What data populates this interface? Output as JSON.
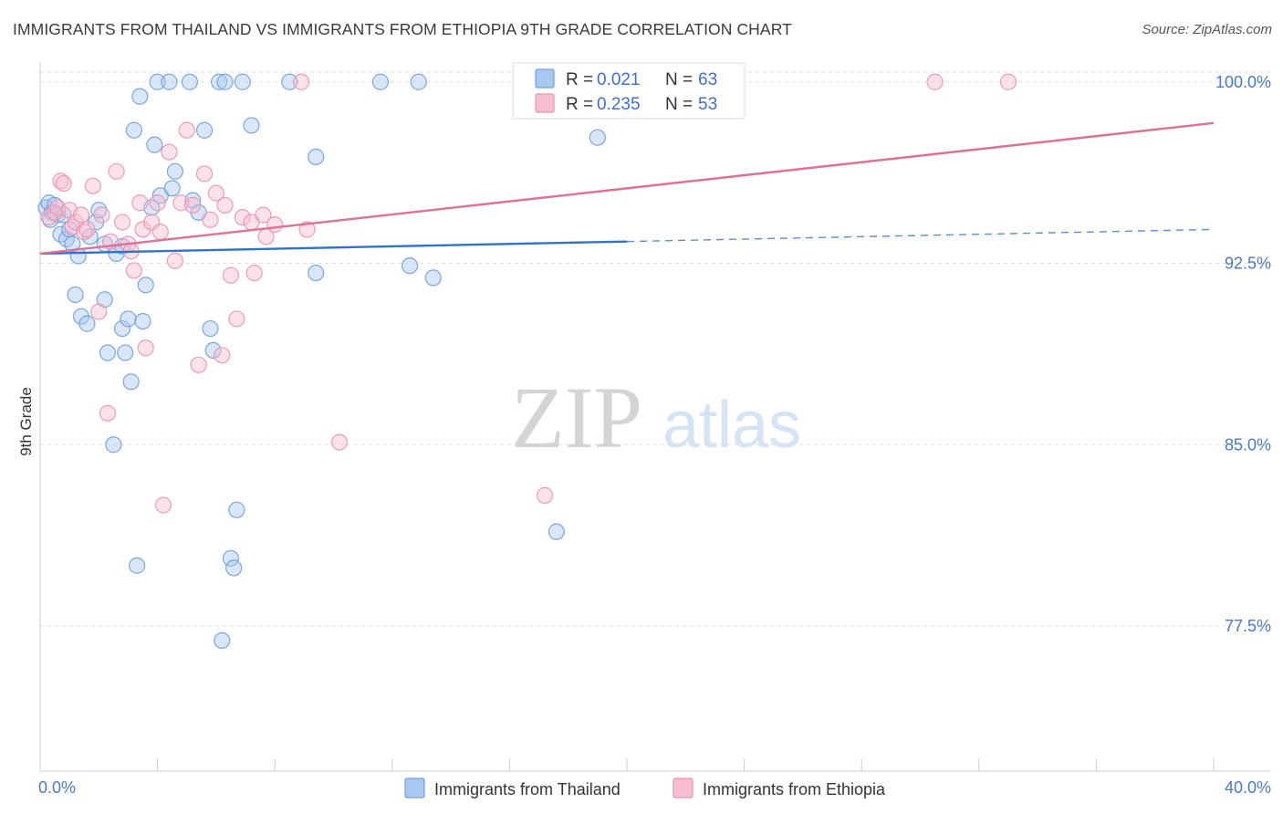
{
  "header": {
    "title": "IMMIGRANTS FROM THAILAND VS IMMIGRANTS FROM ETHIOPIA 9TH GRADE CORRELATION CHART",
    "source": "Source: ZipAtlas.com"
  },
  "watermark": {
    "zip": "ZIP",
    "atlas": "atlas"
  },
  "colors": {
    "thailand_fill": "#a9c8f0",
    "thailand_stroke": "#6f9fdc",
    "thailand_line": "#2f72c9",
    "ethiopia_fill": "#f7bdd0",
    "ethiopia_stroke": "#ea92b0",
    "ethiopia_line": "#e07098",
    "tick_label": "#4a78c8",
    "grid": "#e0e0e0"
  },
  "chart_data": {
    "type": "scatter",
    "title": "IMMIGRANTS FROM THAILAND VS IMMIGRANTS FROM ETHIOPIA 9TH GRADE CORRELATION CHART",
    "xlabel": "",
    "ylabel": "9th Grade",
    "xlim": [
      0,
      40
    ],
    "ylim": [
      71.5,
      101.5
    ],
    "x_tick_labels": [
      {
        "value": 0,
        "label": "0.0%"
      },
      {
        "value": 40,
        "label": "40.0%"
      }
    ],
    "y_tick_labels": [
      {
        "value": 77.5,
        "label": "77.5%"
      },
      {
        "value": 85.0,
        "label": "85.0%"
      },
      {
        "value": 92.5,
        "label": "92.5%"
      },
      {
        "value": 100.0,
        "label": "100.0%"
      }
    ],
    "grid": true,
    "legend_placement": "top-center",
    "legend": [
      {
        "series": "Immigrants from Thailand",
        "r_label": "R =",
        "r_value": "0.021",
        "n_label": "N =",
        "n_value": "63"
      },
      {
        "series": "Immigrants from Ethiopia",
        "r_label": "R =",
        "r_value": "0.235",
        "n_label": "N =",
        "n_value": "53"
      }
    ],
    "series": [
      {
        "name": "Immigrants from Thailand",
        "trend": {
          "x": [
            0,
            20
          ],
          "y": [
            92.9,
            93.4
          ],
          "dashed_to": [
            40,
            93.9
          ]
        },
        "points": [
          [
            0.2,
            94.8
          ],
          [
            0.3,
            95.0
          ],
          [
            0.4,
            94.6
          ],
          [
            0.5,
            94.9
          ],
          [
            0.6,
            94.5
          ],
          [
            0.7,
            93.7
          ],
          [
            0.8,
            94.5
          ],
          [
            0.9,
            93.5
          ],
          [
            1.0,
            93.9
          ],
          [
            1.1,
            93.3
          ],
          [
            1.3,
            92.8
          ],
          [
            1.2,
            91.2
          ],
          [
            1.4,
            90.3
          ],
          [
            1.6,
            90.0
          ],
          [
            1.7,
            93.6
          ],
          [
            1.9,
            94.2
          ],
          [
            2.0,
            94.7
          ],
          [
            2.2,
            93.3
          ],
          [
            2.2,
            91.0
          ],
          [
            2.3,
            88.8
          ],
          [
            2.5,
            85.0
          ],
          [
            2.6,
            92.9
          ],
          [
            2.8,
            93.2
          ],
          [
            2.8,
            89.8
          ],
          [
            2.9,
            88.8
          ],
          [
            3.0,
            90.2
          ],
          [
            3.1,
            87.6
          ],
          [
            3.2,
            98.0
          ],
          [
            3.3,
            80.0
          ],
          [
            3.4,
            99.4
          ],
          [
            3.5,
            90.1
          ],
          [
            3.6,
            91.6
          ],
          [
            3.8,
            94.8
          ],
          [
            3.9,
            97.4
          ],
          [
            4.0,
            100.0
          ],
          [
            4.1,
            95.3
          ],
          [
            4.4,
            100.0
          ],
          [
            4.5,
            95.6
          ],
          [
            4.6,
            96.3
          ],
          [
            5.1,
            100.0
          ],
          [
            5.2,
            95.1
          ],
          [
            5.4,
            94.6
          ],
          [
            5.6,
            98.0
          ],
          [
            5.8,
            89.8
          ],
          [
            5.9,
            88.9
          ],
          [
            6.1,
            100.0
          ],
          [
            6.2,
            76.9
          ],
          [
            6.3,
            100.0
          ],
          [
            6.5,
            80.3
          ],
          [
            6.6,
            79.9
          ],
          [
            6.7,
            82.3
          ],
          [
            6.9,
            100.0
          ],
          [
            7.2,
            98.2
          ],
          [
            8.5,
            100.0
          ],
          [
            9.4,
            96.9
          ],
          [
            9.4,
            92.1
          ],
          [
            11.6,
            100.0
          ],
          [
            12.6,
            92.4
          ],
          [
            12.9,
            100.0
          ],
          [
            13.4,
            91.9
          ],
          [
            17.6,
            81.4
          ],
          [
            19.0,
            97.7
          ],
          [
            0.35,
            94.3
          ]
        ]
      },
      {
        "name": "Immigrants from Ethiopia",
        "trend": {
          "x": [
            0,
            40
          ],
          "y": [
            92.9,
            98.3
          ]
        },
        "points": [
          [
            0.3,
            94.4
          ],
          [
            0.5,
            94.6
          ],
          [
            0.6,
            94.8
          ],
          [
            0.7,
            95.9
          ],
          [
            0.8,
            95.8
          ],
          [
            1.0,
            94.7
          ],
          [
            1.1,
            94.0
          ],
          [
            1.2,
            94.2
          ],
          [
            1.4,
            94.5
          ],
          [
            1.5,
            93.8
          ],
          [
            1.6,
            93.9
          ],
          [
            1.8,
            95.7
          ],
          [
            2.0,
            90.5
          ],
          [
            2.1,
            94.5
          ],
          [
            2.3,
            86.3
          ],
          [
            2.4,
            93.4
          ],
          [
            2.6,
            96.3
          ],
          [
            2.8,
            94.2
          ],
          [
            3.0,
            93.3
          ],
          [
            3.1,
            93.0
          ],
          [
            3.2,
            92.2
          ],
          [
            3.4,
            95.0
          ],
          [
            3.5,
            93.9
          ],
          [
            3.6,
            89.0
          ],
          [
            3.8,
            94.2
          ],
          [
            4.0,
            95.0
          ],
          [
            4.1,
            93.8
          ],
          [
            4.2,
            82.5
          ],
          [
            4.4,
            97.1
          ],
          [
            4.6,
            92.6
          ],
          [
            4.8,
            95.0
          ],
          [
            5.0,
            98.0
          ],
          [
            5.2,
            94.9
          ],
          [
            5.4,
            88.3
          ],
          [
            5.6,
            96.2
          ],
          [
            5.8,
            94.3
          ],
          [
            6.0,
            95.4
          ],
          [
            6.2,
            88.7
          ],
          [
            6.3,
            94.9
          ],
          [
            6.5,
            92.0
          ],
          [
            6.7,
            90.2
          ],
          [
            6.9,
            94.4
          ],
          [
            7.2,
            94.2
          ],
          [
            7.3,
            92.1
          ],
          [
            7.6,
            94.5
          ],
          [
            7.7,
            93.6
          ],
          [
            8.0,
            94.1
          ],
          [
            8.9,
            100.0
          ],
          [
            9.1,
            93.9
          ],
          [
            10.2,
            85.1
          ],
          [
            17.2,
            82.9
          ],
          [
            30.5,
            100.0
          ],
          [
            33.0,
            100.0
          ]
        ]
      }
    ]
  },
  "bottom_legend": [
    {
      "label": "Immigrants from Thailand"
    },
    {
      "label": "Immigrants from Ethiopia"
    }
  ]
}
